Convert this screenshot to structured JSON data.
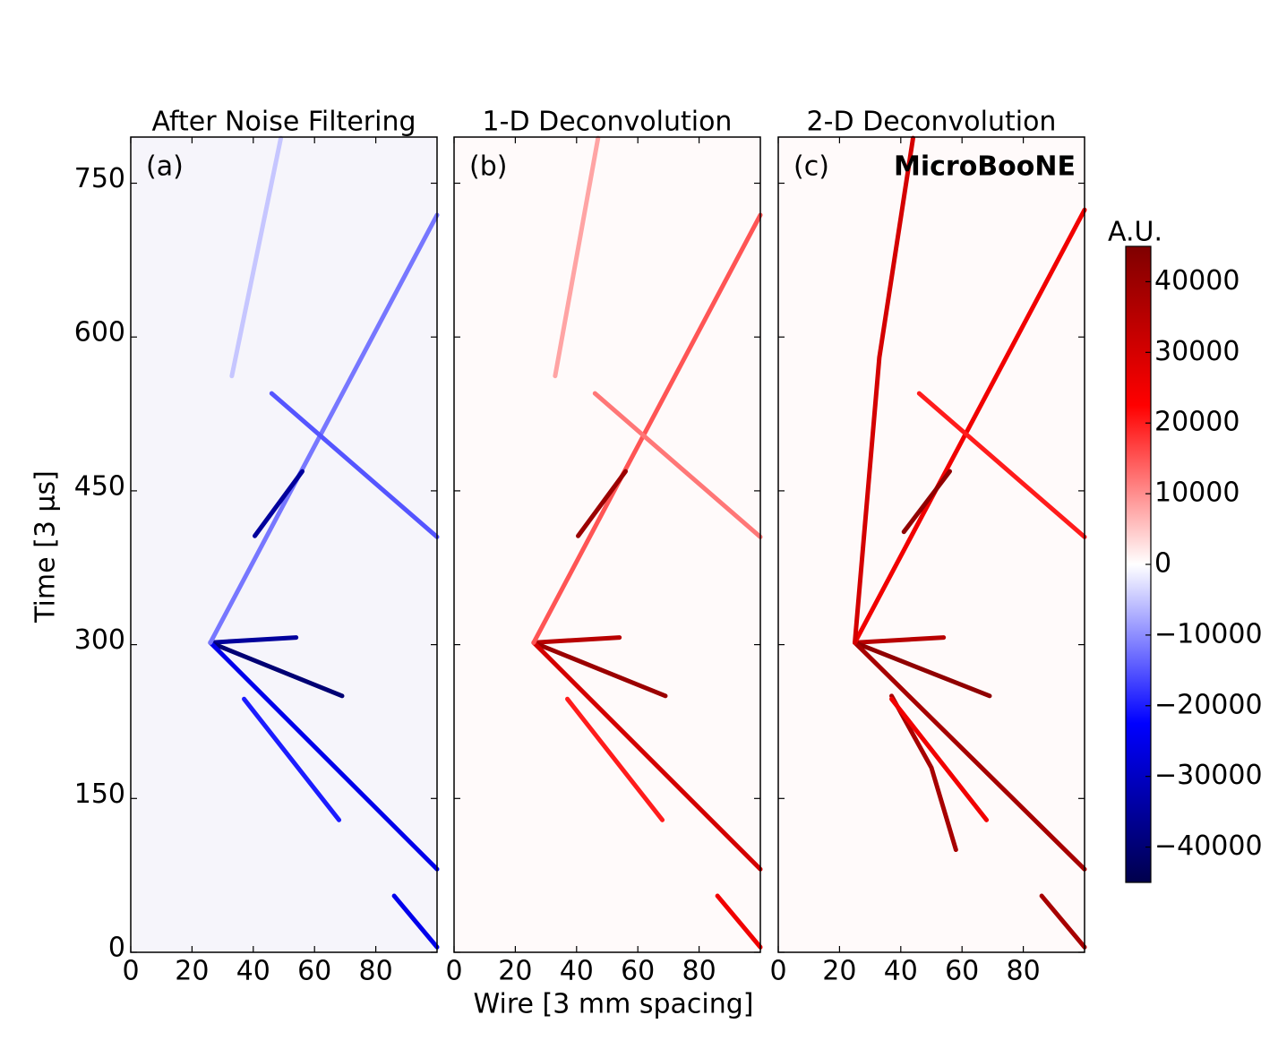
{
  "chart_data": [
    {
      "type": "heatmap",
      "title": "After Noise Filtering",
      "panel_label": "(a)",
      "ylabel": "Time [3 μs]",
      "xlim": [
        0,
        100
      ],
      "ylim": [
        0,
        795
      ],
      "xticks": [
        0,
        20,
        40,
        60,
        80
      ],
      "yticks": [
        0,
        150,
        300,
        450,
        600,
        750
      ],
      "tracks": [
        {
          "x": [
            26,
            54
          ],
          "y": [
            302,
            307
          ],
          "value": -35000
        },
        {
          "x": [
            26,
            69
          ],
          "y": [
            302,
            250
          ],
          "value": -40000
        },
        {
          "x": [
            26,
            100
          ],
          "y": [
            302,
            81
          ],
          "value": -25000
        },
        {
          "x": [
            26,
            100
          ],
          "y": [
            302,
            719
          ],
          "value": -12000
        },
        {
          "x": [
            46,
            100
          ],
          "y": [
            545,
            405
          ],
          "value": -15000
        },
        {
          "x": [
            40.5,
            56
          ],
          "y": [
            406,
            469
          ],
          "value": -35000
        },
        {
          "x": [
            49,
            33
          ],
          "y": [
            794,
            562
          ],
          "value": -5000
        },
        {
          "x": [
            37,
            68
          ],
          "y": [
            247,
            129
          ],
          "value": -20000
        },
        {
          "x": [
            86,
            100
          ],
          "y": [
            55,
            5
          ],
          "value": -25000
        }
      ]
    },
    {
      "type": "heatmap",
      "title": "1-D Deconvolution",
      "panel_label": "(b)",
      "xlabel": "Wire [3 mm spacing]",
      "xlim": [
        0,
        100
      ],
      "ylim": [
        0,
        795
      ],
      "xticks": [
        0,
        20,
        40,
        60,
        80
      ],
      "tracks": [
        {
          "x": [
            26,
            54
          ],
          "y": [
            302,
            307
          ],
          "value": 35000
        },
        {
          "x": [
            26,
            69
          ],
          "y": [
            302,
            250
          ],
          "value": 40000
        },
        {
          "x": [
            26,
            100
          ],
          "y": [
            302,
            81
          ],
          "value": 30000
        },
        {
          "x": [
            26,
            100
          ],
          "y": [
            302,
            719
          ],
          "value": 15000
        },
        {
          "x": [
            46,
            100
          ],
          "y": [
            545,
            405
          ],
          "value": 12000
        },
        {
          "x": [
            40.5,
            56
          ],
          "y": [
            406,
            469
          ],
          "value": 40000
        },
        {
          "x": [
            47,
            33
          ],
          "y": [
            794,
            562
          ],
          "value": 8000
        },
        {
          "x": [
            37,
            68
          ],
          "y": [
            247,
            129
          ],
          "value": 20000
        },
        {
          "x": [
            86,
            100
          ],
          "y": [
            55,
            5
          ],
          "value": 25000
        }
      ]
    },
    {
      "type": "heatmap",
      "title": "2-D Deconvolution",
      "panel_label": "(c)",
      "annotation": "MicroBooNE",
      "xlim": [
        0,
        100
      ],
      "ylim": [
        0,
        795
      ],
      "xticks": [
        0,
        20,
        40,
        60,
        80
      ],
      "tracks": [
        {
          "x": [
            25,
            54
          ],
          "y": [
            302,
            307
          ],
          "value": 35000
        },
        {
          "x": [
            25,
            69
          ],
          "y": [
            302,
            250
          ],
          "value": 42000
        },
        {
          "x": [
            25,
            100
          ],
          "y": [
            302,
            81
          ],
          "value": 38000
        },
        {
          "x": [
            25,
            100
          ],
          "y": [
            302,
            724
          ],
          "value": 25000
        },
        {
          "x": [
            25,
            33,
            44
          ],
          "y": [
            302,
            580,
            794
          ],
          "value": 30000
        },
        {
          "x": [
            46,
            100
          ],
          "y": [
            545,
            405
          ],
          "value": 20000
        },
        {
          "x": [
            41,
            56
          ],
          "y": [
            410,
            469
          ],
          "value": 42000
        },
        {
          "x": [
            37,
            50,
            58
          ],
          "y": [
            250,
            180,
            100
          ],
          "value": 38000
        },
        {
          "x": [
            37,
            68
          ],
          "y": [
            247,
            129
          ],
          "value": 25000
        },
        {
          "x": [
            86,
            100
          ],
          "y": [
            55,
            5
          ],
          "value": 38000
        }
      ]
    },
    {
      "type": "colorbar",
      "label": "A.U.",
      "colormap": "seismic",
      "clim": [
        -45000,
        45000
      ],
      "ticks": [
        40000,
        30000,
        20000,
        10000,
        0,
        {
          "value": -10000,
          "label": "−10000"
        },
        {
          "value": -20000,
          "label": "−20000"
        },
        {
          "value": -30000,
          "label": "−30000"
        },
        {
          "value": -40000,
          "label": "−40000"
        }
      ]
    }
  ]
}
